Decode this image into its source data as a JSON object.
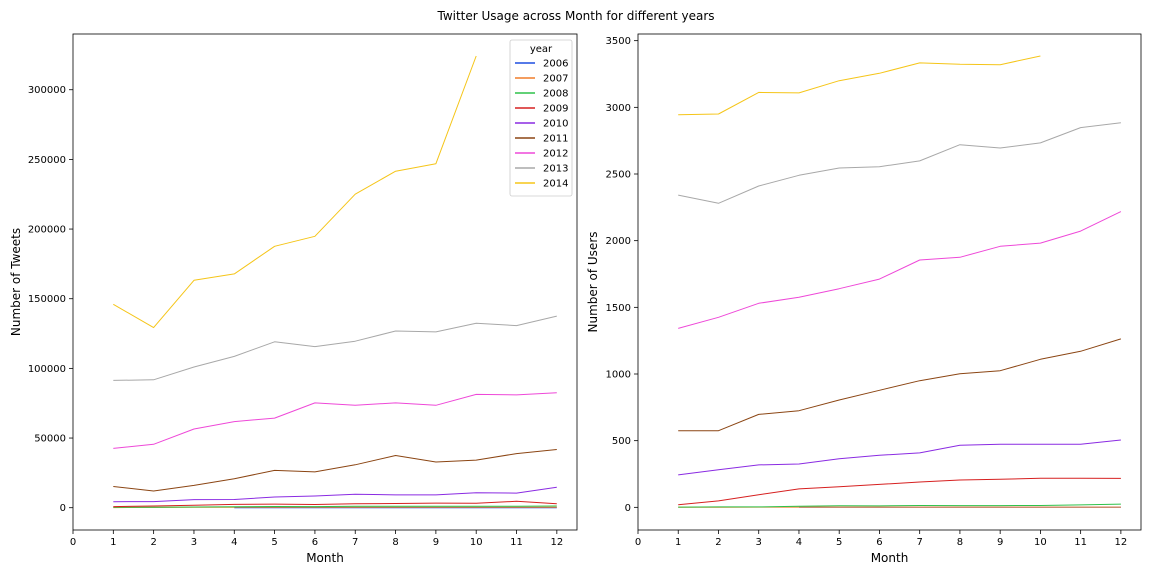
{
  "suptitle": "Twitter Usage across Month for different years",
  "legend": {
    "title": "year",
    "entries": [
      {
        "label": "2006",
        "color": "#1f4fe0"
      },
      {
        "label": "2007",
        "color": "#f07d2a"
      },
      {
        "label": "2008",
        "color": "#2fc24a"
      },
      {
        "label": "2009",
        "color": "#d62020"
      },
      {
        "label": "2010",
        "color": "#8a2be2"
      },
      {
        "label": "2011",
        "color": "#8b4513"
      },
      {
        "label": "2012",
        "color": "#ee48d8"
      },
      {
        "label": "2013",
        "color": "#a8a8a8"
      },
      {
        "label": "2014",
        "color": "#f5c518"
      }
    ]
  },
  "chart_data": [
    {
      "type": "line",
      "xlabel": "Month",
      "ylabel": "Number of Tweets",
      "xlim": [
        0,
        12.5
      ],
      "ylim": [
        -16000,
        340000
      ],
      "xticks": [
        0,
        1,
        2,
        3,
        4,
        5,
        6,
        7,
        8,
        9,
        10,
        11,
        12
      ],
      "yticks": [
        0,
        50000,
        100000,
        150000,
        200000,
        250000,
        300000
      ],
      "legend_position": "top-right",
      "series": [
        {
          "name": "2006",
          "color": "#1f4fe0",
          "x": [
            4,
            5,
            6,
            7,
            8,
            9,
            10,
            11,
            12
          ],
          "values": [
            10,
            10,
            10,
            10,
            10,
            10,
            10,
            10,
            10
          ]
        },
        {
          "name": "2007",
          "color": "#f07d2a",
          "x": [
            1,
            2,
            3,
            4,
            5,
            6,
            7,
            8,
            9,
            10,
            11,
            12
          ],
          "values": [
            100,
            200,
            300,
            300,
            400,
            300,
            400,
            400,
            400,
            400,
            400,
            400
          ]
        },
        {
          "name": "2008",
          "color": "#2fc24a",
          "x": [
            1,
            2,
            3,
            4,
            5,
            6,
            7,
            8,
            9,
            10,
            11,
            12
          ],
          "values": [
            300,
            400,
            500,
            700,
            900,
            800,
            1000,
            1000,
            1100,
            1000,
            1100,
            1200
          ]
        },
        {
          "name": "2009",
          "color": "#d62020",
          "x": [
            1,
            2,
            3,
            4,
            5,
            6,
            7,
            8,
            9,
            10,
            11,
            12
          ],
          "values": [
            800,
            1200,
            1700,
            2400,
            2600,
            2300,
            2900,
            3000,
            3300,
            3200,
            4600,
            2800
          ]
        },
        {
          "name": "2010",
          "color": "#8a2be2",
          "x": [
            1,
            2,
            3,
            4,
            5,
            6,
            7,
            8,
            9,
            10,
            11,
            12
          ],
          "values": [
            4300,
            4400,
            5800,
            5900,
            7700,
            8400,
            9700,
            9200,
            9200,
            10700,
            10500,
            14700
          ]
        },
        {
          "name": "2011",
          "color": "#8b4513",
          "x": [
            1,
            2,
            3,
            4,
            5,
            6,
            7,
            8,
            9,
            10,
            11,
            12
          ],
          "values": [
            15200,
            12000,
            16000,
            20800,
            26800,
            25700,
            30800,
            37500,
            32800,
            34200,
            38800,
            41800
          ]
        },
        {
          "name": "2012",
          "color": "#ee48d8",
          "x": [
            1,
            2,
            3,
            4,
            5,
            6,
            7,
            8,
            9,
            10,
            11,
            12
          ],
          "values": [
            42600,
            45500,
            56500,
            61800,
            64300,
            75200,
            73600,
            75200,
            73500,
            81300,
            81000,
            82500
          ]
        },
        {
          "name": "2013",
          "color": "#a8a8a8",
          "x": [
            1,
            2,
            3,
            4,
            5,
            6,
            7,
            8,
            9,
            10,
            11,
            12
          ],
          "values": [
            91400,
            91800,
            101000,
            108600,
            119100,
            115600,
            119500,
            126800,
            126200,
            132400,
            130700,
            137500
          ]
        },
        {
          "name": "2014",
          "color": "#f5c518",
          "x": [
            1,
            2,
            3,
            4,
            5,
            6,
            7,
            8,
            9,
            10
          ],
          "values": [
            146000,
            129300,
            163200,
            167800,
            187600,
            194800,
            225000,
            241500,
            246900,
            324200
          ]
        }
      ]
    },
    {
      "type": "line",
      "xlabel": "Month",
      "ylabel": "Number of Users",
      "xlim": [
        0,
        12.5
      ],
      "ylim": [
        -170,
        3550
      ],
      "xticks": [
        0,
        1,
        2,
        3,
        4,
        5,
        6,
        7,
        8,
        9,
        10,
        11,
        12
      ],
      "yticks": [
        0,
        500,
        1000,
        1500,
        2000,
        2500,
        3000,
        3500
      ],
      "series": [
        {
          "name": "2006",
          "color": "#1f4fe0",
          "x": [
            4,
            5,
            6,
            7,
            8,
            9,
            10,
            11,
            12
          ],
          "values": [
            0,
            0,
            0,
            0,
            0,
            0,
            0,
            0,
            0
          ]
        },
        {
          "name": "2007",
          "color": "#f07d2a",
          "x": [
            1,
            2,
            3,
            4,
            5,
            6,
            7,
            8,
            9,
            10,
            11,
            12
          ],
          "values": [
            1,
            1,
            2,
            2,
            2,
            2,
            2,
            2,
            2,
            2,
            2,
            2
          ]
        },
        {
          "name": "2008",
          "color": "#2fc24a",
          "x": [
            1,
            2,
            3,
            4,
            5,
            6,
            7,
            8,
            9,
            10,
            11,
            12
          ],
          "values": [
            2,
            3,
            3,
            8,
            12,
            11,
            14,
            13,
            13,
            14,
            18,
            24
          ]
        },
        {
          "name": "2009",
          "color": "#d62020",
          "x": [
            1,
            2,
            3,
            4,
            5,
            6,
            7,
            8,
            9,
            10,
            11,
            12
          ],
          "values": [
            20,
            48,
            95,
            138,
            155,
            172,
            190,
            205,
            210,
            218,
            218,
            217
          ]
        },
        {
          "name": "2010",
          "color": "#8a2be2",
          "x": [
            1,
            2,
            3,
            4,
            5,
            6,
            7,
            8,
            9,
            10,
            11,
            12
          ],
          "values": [
            243,
            282,
            318,
            325,
            365,
            390,
            408,
            466,
            473,
            473,
            473,
            505
          ]
        },
        {
          "name": "2011",
          "color": "#8b4513",
          "x": [
            1,
            2,
            3,
            4,
            5,
            6,
            7,
            8,
            9,
            10,
            11,
            12
          ],
          "values": [
            575,
            575,
            697,
            725,
            805,
            878,
            950,
            1002,
            1025,
            1110,
            1170,
            1263
          ]
        },
        {
          "name": "2012",
          "color": "#ee48d8",
          "x": [
            1,
            2,
            3,
            4,
            5,
            6,
            7,
            8,
            9,
            10,
            11,
            12
          ],
          "values": [
            1342,
            1425,
            1530,
            1575,
            1640,
            1712,
            1855,
            1875,
            1958,
            1982,
            2072,
            2218
          ]
        },
        {
          "name": "2013",
          "color": "#a8a8a8",
          "x": [
            1,
            2,
            3,
            4,
            5,
            6,
            7,
            8,
            9,
            10,
            11,
            12
          ],
          "values": [
            2342,
            2280,
            2410,
            2490,
            2545,
            2555,
            2598,
            2720,
            2695,
            2733,
            2848,
            2885
          ]
        },
        {
          "name": "2014",
          "color": "#f5c518",
          "x": [
            1,
            2,
            3,
            4,
            5,
            6,
            7,
            8,
            9,
            10
          ],
          "values": [
            2945,
            2950,
            3112,
            3108,
            3200,
            3255,
            3333,
            3323,
            3320,
            3385
          ]
        }
      ]
    }
  ]
}
